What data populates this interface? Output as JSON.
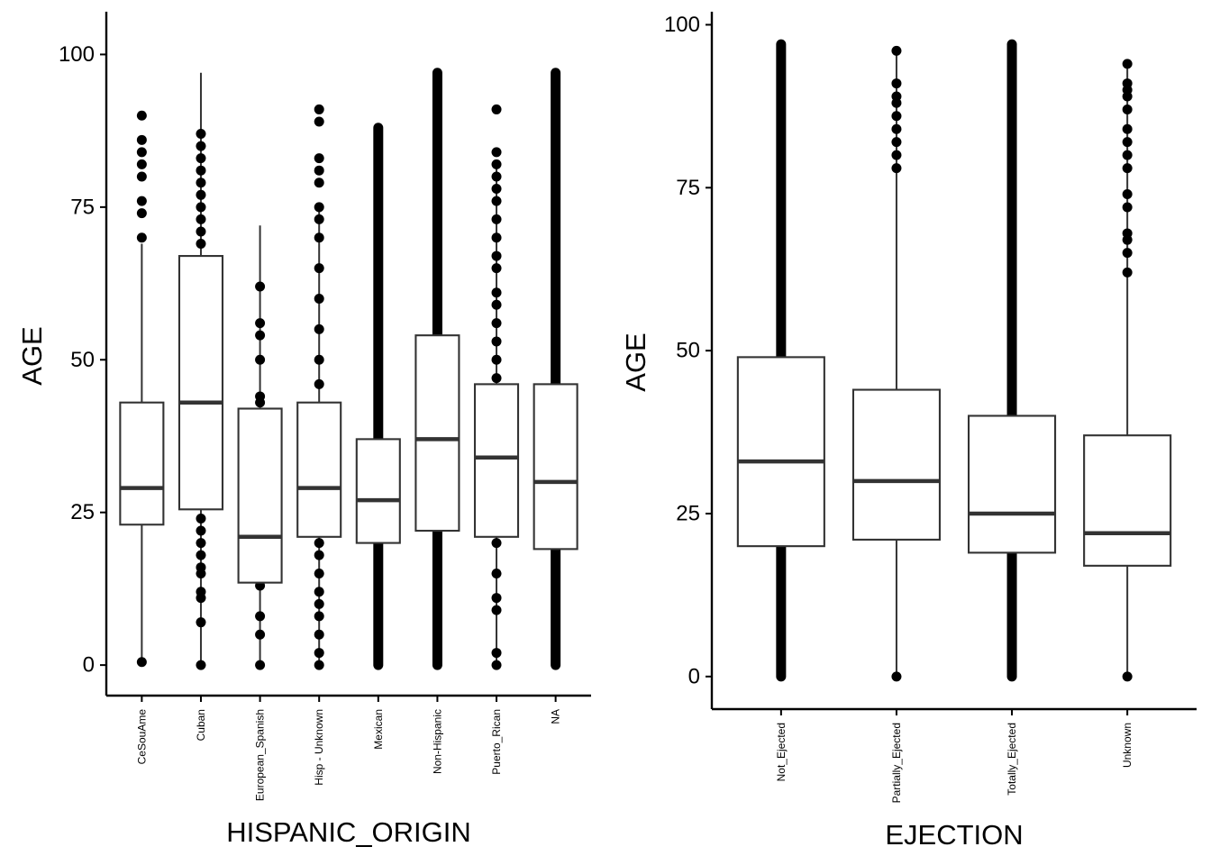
{
  "chart_data": [
    {
      "type": "box",
      "xlabel": "HISPANIC_ORIGIN",
      "ylabel": "AGE",
      "ylim": [
        -5,
        107
      ],
      "yticks": [
        0,
        25,
        50,
        75,
        100
      ],
      "grid": false,
      "legend": "none",
      "categories": [
        "CeSouAme",
        "Cuban",
        "European_Spanish",
        "Hisp - Unknown",
        "Mexican",
        "Non-Hispanic",
        "Puerto_Rican",
        "NA"
      ],
      "boxes": [
        {
          "category": "CeSouAme",
          "q1": 23,
          "median": 29,
          "q3": 43,
          "whisker_low": 1,
          "whisker_high": 69,
          "outliers": [
            70,
            74,
            76,
            80,
            82,
            84,
            86,
            90,
            0.5
          ]
        },
        {
          "category": "Cuban",
          "q1": 25.5,
          "median": 43,
          "q3": 67,
          "whisker_low": 0,
          "whisker_high": 97,
          "outliers": [
            0,
            7,
            11,
            12,
            15,
            16,
            18,
            20,
            22,
            24,
            69,
            71,
            73,
            75,
            77,
            79,
            81,
            83,
            85,
            87
          ]
        },
        {
          "category": "European_Spanish",
          "q1": 13.5,
          "median": 21,
          "q3": 42,
          "whisker_low": 0,
          "whisker_high": 72,
          "outliers": [
            0,
            5,
            8,
            13,
            43,
            44,
            50,
            54,
            56,
            62
          ]
        },
        {
          "category": "Hisp - Unknown",
          "q1": 21,
          "median": 29,
          "q3": 43,
          "whisker_low": 0,
          "whisker_high": 75,
          "outliers": [
            0,
            2,
            5,
            8,
            10,
            12,
            15,
            18,
            20,
            46,
            50,
            55,
            60,
            65,
            70,
            73,
            75,
            79,
            81,
            83,
            89,
            91
          ]
        },
        {
          "category": "Mexican",
          "q1": 20,
          "median": 27,
          "q3": 37,
          "whisker_low": 0,
          "whisker_high": 88,
          "outliers": [
            0,
            88
          ]
        },
        {
          "category": "Non-Hispanic",
          "q1": 22,
          "median": 37,
          "q3": 54,
          "whisker_low": 0,
          "whisker_high": 97,
          "outliers": [
            0,
            97
          ]
        },
        {
          "category": "Puerto_Rican",
          "q1": 21,
          "median": 34,
          "q3": 46,
          "whisker_low": 0,
          "whisker_high": 82,
          "outliers": [
            0,
            2,
            9,
            11,
            15,
            20,
            47,
            50,
            53,
            56,
            59,
            61,
            65,
            67,
            70,
            73,
            76,
            78,
            80,
            82,
            84,
            91
          ]
        },
        {
          "category": "NA",
          "q1": 19,
          "median": 30,
          "q3": 46,
          "whisker_low": 0,
          "whisker_high": 97,
          "outliers": [
            0,
            97
          ]
        }
      ]
    },
    {
      "type": "box",
      "xlabel": "EJECTION",
      "ylabel": "AGE",
      "ylim": [
        -5,
        102
      ],
      "yticks": [
        0,
        25,
        50,
        75,
        100
      ],
      "grid": false,
      "legend": "none",
      "categories": [
        "Not_Ejected",
        "Partially_Ejected",
        "Totally_Ejected",
        "Unknown"
      ],
      "boxes": [
        {
          "category": "Not_Ejected",
          "q1": 20,
          "median": 33,
          "q3": 49,
          "whisker_low": 0,
          "whisker_high": 97,
          "outliers": [
            0,
            97
          ]
        },
        {
          "category": "Partially_Ejected",
          "q1": 21,
          "median": 30,
          "q3": 44,
          "whisker_low": 0,
          "whisker_high": 96,
          "outliers": [
            0,
            78,
            80,
            82,
            84,
            86,
            88,
            89,
            91,
            96
          ]
        },
        {
          "category": "Totally_Ejected",
          "q1": 19,
          "median": 25,
          "q3": 40,
          "whisker_low": 0,
          "whisker_high": 97,
          "outliers": [
            0,
            97
          ]
        },
        {
          "category": "Unknown",
          "q1": 17,
          "median": 22,
          "q3": 37,
          "whisker_low": 0,
          "whisker_high": 94,
          "outliers": [
            0,
            62,
            65,
            67,
            68,
            72,
            74,
            78,
            80,
            82,
            84,
            87,
            89,
            90,
            91,
            94
          ]
        }
      ]
    }
  ]
}
